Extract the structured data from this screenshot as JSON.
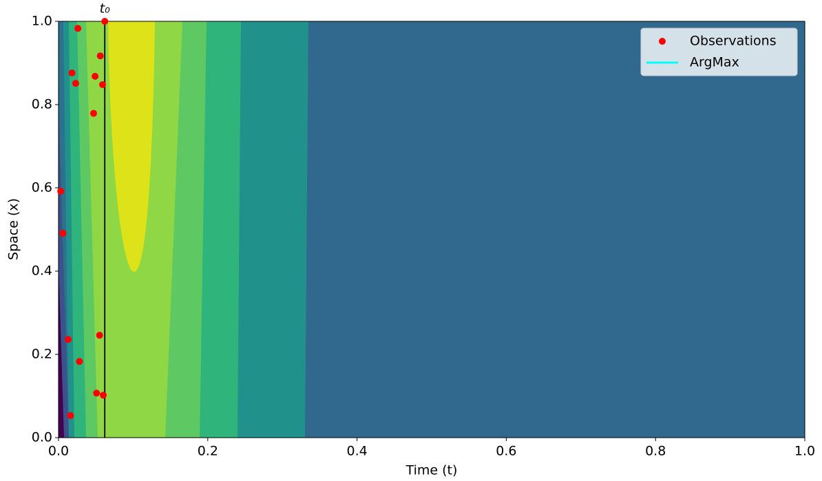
{
  "chart_data": {
    "type": "scatter",
    "xlabel": "Time (t)",
    "ylabel": "Space (x)",
    "xlim": [
      0,
      1
    ],
    "ylim": [
      0,
      1
    ],
    "xticks": [
      {
        "value": 0,
        "label": "0.0"
      },
      {
        "value": 0.2,
        "label": "0.2"
      },
      {
        "value": 0.4,
        "label": "0.4"
      },
      {
        "value": 0.6,
        "label": "0.6"
      },
      {
        "value": 0.8,
        "label": "0.8"
      },
      {
        "value": 1,
        "label": "1.0"
      }
    ],
    "yticks": [
      {
        "value": 0,
        "label": "0.0"
      },
      {
        "value": 0.2,
        "label": "0.2"
      },
      {
        "value": 0.4,
        "label": "0.4"
      },
      {
        "value": 0.6,
        "label": "0.6"
      },
      {
        "value": 0.8,
        "label": "0.8"
      },
      {
        "value": 1,
        "label": "1.0"
      }
    ],
    "series": [
      {
        "name": "Observations",
        "color": "#ff0000",
        "x": [
          0.026,
          0.018,
          0.023,
          0.049,
          0.056,
          0.059,
          0.047,
          0.062,
          0.003,
          0.006,
          0.013,
          0.055,
          0.028,
          0.051,
          0.06,
          0.016
        ],
        "values": [
          0.983,
          0.876,
          0.851,
          0.868,
          0.917,
          0.848,
          0.779,
          1.0,
          0.592,
          0.491,
          0.236,
          0.246,
          0.183,
          0.107,
          0.102,
          0.053
        ]
      },
      {
        "name": "ArgMax",
        "color": "#00ffff"
      }
    ],
    "vline": {
      "x": 0.062,
      "label": "t₀",
      "color": "#000000"
    },
    "legend": "upper right"
  }
}
